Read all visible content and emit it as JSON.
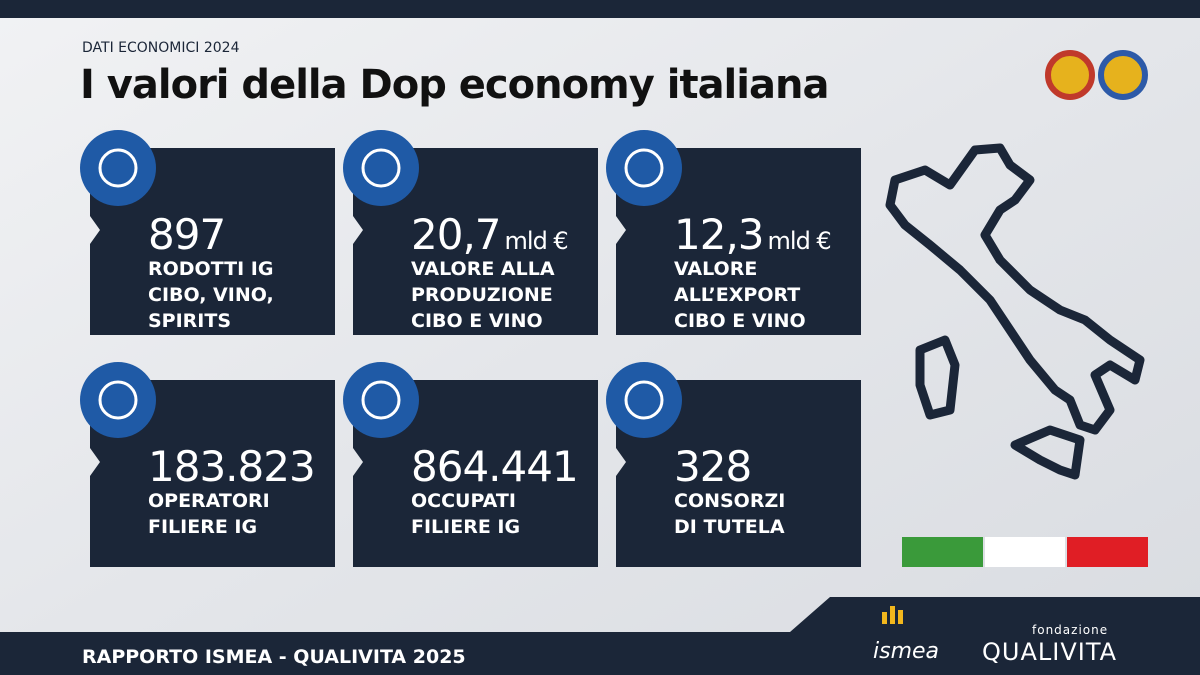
{
  "header": {
    "kicker": "DATI ECONOMICI 2024",
    "title": "I valori della Dop economy italiana"
  },
  "cards": [
    {
      "value": "897",
      "lines": [
        "RODOTTI IG",
        "CIBO, VINO,",
        "SPIRITS"
      ]
    },
    {
      "value": "20,7",
      "unit": "mld €",
      "lines": [
        "VALORE ALLA",
        "PRODUZIONE",
        "CIBO E VINO"
      ]
    },
    {
      "value": "12,3",
      "unit": "mld €",
      "lines": [
        "VALORE",
        "ALL’EXPORT",
        "CIBO E VINO"
      ]
    },
    {
      "value": "183.823",
      "lines": [
        "OPERATORI",
        "FILIERE IG"
      ]
    },
    {
      "value": "864.441",
      "lines": [
        "OCCUPATI",
        "FILIERE IG"
      ]
    },
    {
      "value": "328",
      "lines": [
        "CONSORZI",
        "DI TUTELA"
      ]
    }
  ],
  "footer": {
    "text": "RAPPORTO ISMEA - QUALIVITA 2025",
    "logo1": "ismea",
    "logo2_small": "fondazione",
    "logo2": "QUALIVITA"
  }
}
